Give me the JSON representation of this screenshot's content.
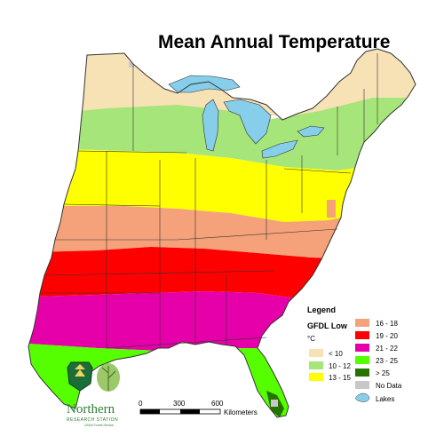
{
  "title": "Mean Annual Temperature",
  "legend": {
    "heading": "Legend",
    "model": "GFDL Low",
    "unit": "°C",
    "classes": [
      {
        "label": "< 10",
        "color": "#f7e2b6"
      },
      {
        "label": "10 - 12",
        "color": "#a6e57a"
      },
      {
        "label": "13 - 15",
        "color": "#ffff00"
      },
      {
        "label": "16 - 18",
        "color": "#f5a27a"
      },
      {
        "label": "19 - 20",
        "color": "#ff0000"
      },
      {
        "label": "21 - 22",
        "color": "#e600a9"
      },
      {
        "label": "23 - 25",
        "color": "#55ff00"
      },
      {
        "label": "> 25",
        "color": "#267300"
      },
      {
        "label": "No Data",
        "color": "#c8c8c8"
      },
      {
        "label": "Lakes",
        "color": "#87ceeb"
      }
    ]
  },
  "scale_bar": {
    "ticks": [
      "0",
      "300",
      "600"
    ],
    "unit": "Kilometers"
  },
  "logo": {
    "org": "Northern",
    "sub": "RESEARCH STATION",
    "fine": "USDA Forest Service"
  },
  "colors": {
    "border": "#333333",
    "lakes": "#87ceeb"
  }
}
